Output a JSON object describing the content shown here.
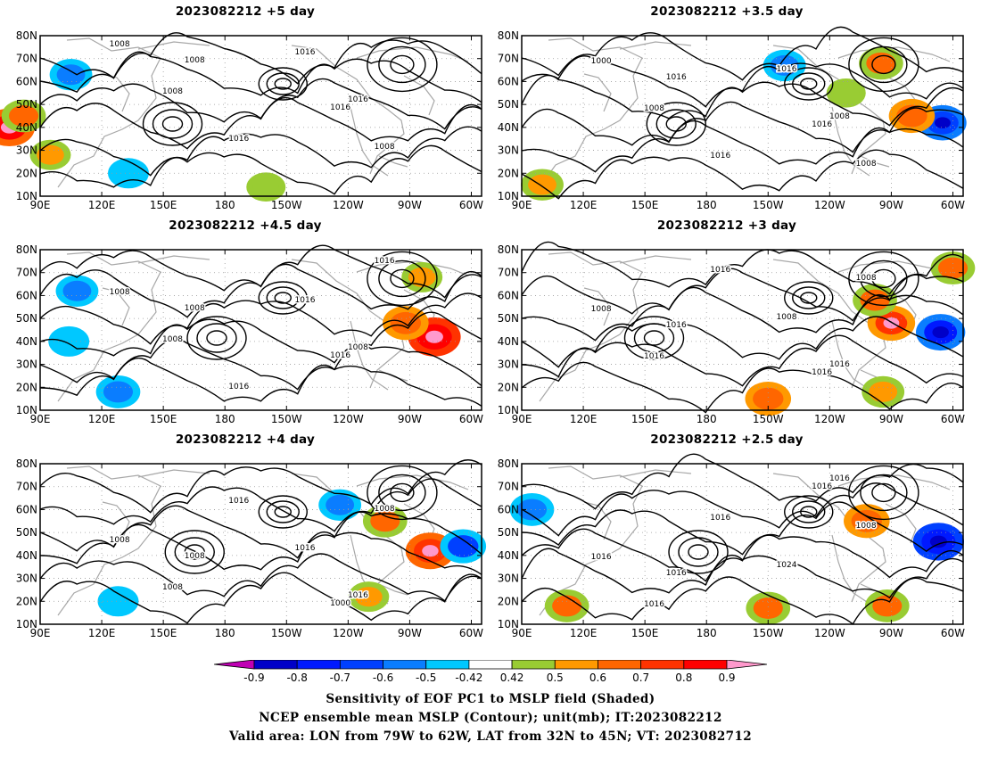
{
  "panels": [
    {
      "title": "2023082212 +5 day",
      "contours": [
        "1008",
        "1008",
        "1016",
        "1016",
        "1016",
        "1008",
        "1008",
        "1016"
      ],
      "blobs": [
        {
          "lon": 105,
          "lat": 63,
          "v": -0.55
        },
        {
          "lon": 75,
          "lat": 40,
          "v": 0.8
        },
        {
          "lon": 82,
          "lat": 45,
          "v": 0.6
        },
        {
          "lon": 95,
          "lat": 28,
          "v": 0.5
        },
        {
          "lon": 133,
          "lat": 20,
          "v": -0.5
        },
        {
          "lon": 200,
          "lat": 14,
          "v": 0.45
        }
      ]
    },
    {
      "title": "2023082212 +3.5 day",
      "contours": [
        "1000",
        "1008",
        "1016",
        "1016",
        "1008",
        "1008",
        "1016",
        "1016"
      ],
      "blobs": [
        {
          "lon": 295,
          "lat": 42,
          "v": -0.7
        },
        {
          "lon": 265,
          "lat": 68,
          "v": 0.6
        },
        {
          "lon": 280,
          "lat": 45,
          "v": 0.65
        },
        {
          "lon": 100,
          "lat": 15,
          "v": 0.55
        },
        {
          "lon": 218,
          "lat": 67,
          "v": -0.55
        },
        {
          "lon": 248,
          "lat": 55,
          "v": 0.45
        }
      ]
    },
    {
      "title": "2023082212 +4.5 day",
      "contours": [
        "1008",
        "1008",
        "1016",
        "1016",
        "1008",
        "1016",
        "1008",
        "1016"
      ],
      "blobs": [
        {
          "lon": 282,
          "lat": 42,
          "v": 0.85
        },
        {
          "lon": 268,
          "lat": 48,
          "v": 0.65
        },
        {
          "lon": 108,
          "lat": 62,
          "v": -0.55
        },
        {
          "lon": 104,
          "lat": 40,
          "v": -0.5
        },
        {
          "lon": 276,
          "lat": 68,
          "v": 0.5
        },
        {
          "lon": 128,
          "lat": 18,
          "v": -0.6
        }
      ]
    },
    {
      "title": "2023082212 +3 day",
      "contours": [
        "1008",
        "1016",
        "1016",
        "1008",
        "1016",
        "1008",
        "1016",
        "1016"
      ],
      "blobs": [
        {
          "lon": 294,
          "lat": 44,
          "v": -0.75
        },
        {
          "lon": 270,
          "lat": 48,
          "v": 0.7
        },
        {
          "lon": 210,
          "lat": 15,
          "v": 0.65
        },
        {
          "lon": 262,
          "lat": 58,
          "v": 0.6
        },
        {
          "lon": 300,
          "lat": 72,
          "v": 0.6
        },
        {
          "lon": 266,
          "lat": 18,
          "v": 0.55
        }
      ]
    },
    {
      "title": "2023082212 +4 day",
      "contours": [
        "1008",
        "1008",
        "1016",
        "1016",
        "1016",
        "1008",
        "1008",
        "1000"
      ],
      "blobs": [
        {
          "lon": 280,
          "lat": 42,
          "v": 0.75
        },
        {
          "lon": 296,
          "lat": 44,
          "v": -0.65
        },
        {
          "lon": 236,
          "lat": 62,
          "v": -0.55
        },
        {
          "lon": 258,
          "lat": 55,
          "v": 0.6
        },
        {
          "lon": 250,
          "lat": 22,
          "v": 0.5
        },
        {
          "lon": 128,
          "lat": 20,
          "v": -0.5
        }
      ]
    },
    {
      "title": "2023082212 +2.5 day",
      "contours": [
        "1016",
        "1016",
        "1016",
        "1024",
        "1016",
        "1008",
        "1016",
        "1016"
      ],
      "blobs": [
        {
          "lon": 293,
          "lat": 46,
          "v": -0.8
        },
        {
          "lon": 95,
          "lat": 60,
          "v": -0.6
        },
        {
          "lon": 258,
          "lat": 55,
          "v": 0.65
        },
        {
          "lon": 210,
          "lat": 17,
          "v": 0.6
        },
        {
          "lon": 112,
          "lat": 18,
          "v": 0.6
        },
        {
          "lon": 268,
          "lat": 18,
          "v": 0.6
        }
      ]
    }
  ],
  "map_axes": {
    "lat_labels": [
      "10N",
      "20N",
      "30N",
      "40N",
      "50N",
      "60N",
      "70N",
      "80N"
    ],
    "lon_labels": [
      "90E",
      "120E",
      "150E",
      "180",
      "150W",
      "120W",
      "90W",
      "60W"
    ],
    "lon_range": [
      90,
      305
    ],
    "lat_range": [
      10,
      80
    ]
  },
  "colorbar": {
    "labels": [
      "-0.9",
      "-0.8",
      "-0.7",
      "-0.6",
      "-0.5",
      "-0.42",
      "0.42",
      "0.5",
      "0.6",
      "0.7",
      "0.8",
      "0.9"
    ],
    "colors": [
      "#c000b4",
      "#0000c8",
      "#0019ff",
      "#0040ff",
      "#0a7dff",
      "#00c8ff",
      "#ffffff",
      "#99cc33",
      "#ff9900",
      "#ff6600",
      "#ff3300",
      "#ff0000",
      "#ff99cc"
    ]
  },
  "captions": {
    "line1": "Sensitivity of EOF PC1 to MSLP field (Shaded)",
    "line2": "NCEP ensemble mean MSLP (Contour); unit(mb); IT:2023082212",
    "line3": "Valid area: LON from 79W to 62W, LAT from 32N to 45N; VT: 2023082712"
  }
}
